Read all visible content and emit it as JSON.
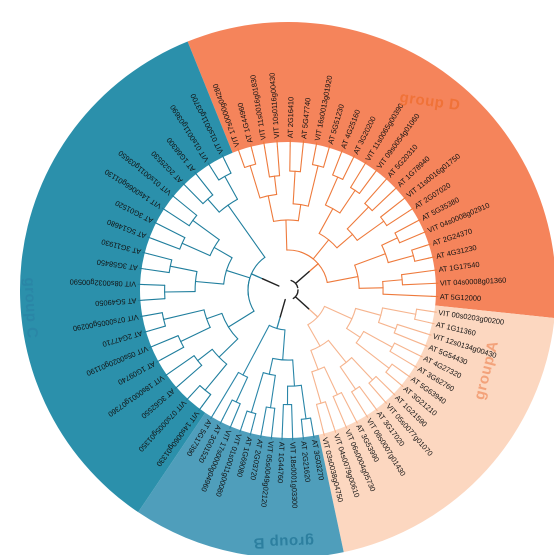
{
  "groups": [
    {
      "key": "D",
      "label": "group D",
      "color": "#F5845B",
      "label_color": "#F07238",
      "branch_color": "#EE7A3C",
      "leaves": [
        "VIT 17s0000g04280",
        "AT 1G44960",
        "VIT 11s0016g01830",
        "VIT 10s0116g00430",
        "AT 2G16410",
        "AT 5G47740",
        "VIT 16s0013g01920",
        "AT 5G51230",
        "AT 4G25160",
        "AT 3G20200",
        "VIT 11s0065g00390",
        "VIT 09s0054g01060",
        "AT 5G20310",
        "AT 1G78940",
        "VIT 11s0016g01750",
        "AT 2G07020",
        "AT 5G35380",
        "VIT 04s0008g02910",
        "AT 2G24370",
        "AT 4G31230",
        "AT 1G17540",
        "VIT 04s0008g01360",
        "AT 5G12000"
      ]
    },
    {
      "key": "A",
      "label": "group A",
      "color": "#FCD7C0",
      "label_color": "#F3A27A",
      "branch_color": "#F6B48E",
      "leaves": [
        "VIT 00s0203g00200",
        "AT 1G11360",
        "VIT 12s0134g00430",
        "AT 5G54430",
        "AT 4G27320",
        "AT 3G62760",
        "AT 5G63940",
        "AT 3G21210",
        "AT 1G21590",
        "VIT 05s0077g01070",
        "AT 3G17020",
        "VIT 08s0007g01430",
        "AT 3G53990",
        "VIT 06s0004g05730",
        "VIT 04s0079g00610",
        "VIT 03s0038g04750"
      ]
    },
    {
      "key": "B",
      "label": "group B",
      "color": "#4F9EBB",
      "label_color": "#2C7F9F",
      "branch_color": "#2A86A8",
      "leaves": [
        "AT 3G03270",
        "AT 2G21620",
        "VIT 18s0001g03300",
        "AT 1G44760",
        "VIT 05s0049g02120",
        "AT 2G03720",
        "AT 1G69080",
        "VIT 01s0011g00080",
        "VIT 17s0000g04960",
        "AT 3G01520",
        "AT 5G17390"
      ]
    },
    {
      "key": "C",
      "label": "group C",
      "color": "#2B90AB",
      "label_color": "#2A86A6",
      "branch_color": "#1F7E9D",
      "leaves": [
        "VIT 14s0060g01330",
        "VIT 07s0005g01350",
        "AT 3G62550",
        "VIT 18s0001g07360",
        "AT 1G09740",
        "VIT 05s0020g01190",
        "AT 2G47710",
        "VIT 07s0005g00290",
        "AT 5G49050",
        "VIT 08s0032g00590",
        "AT 3G58450",
        "AT 3G11930",
        "AT 5G14680",
        "AT 3G01520",
        "VIT 14s0066g01130",
        "VIT 01s0011g03650",
        "AT 2G25530",
        "AT 1G68300",
        "VIT 01s0011g03690",
        "VIT 01s0011g03700"
      ]
    }
  ]
}
